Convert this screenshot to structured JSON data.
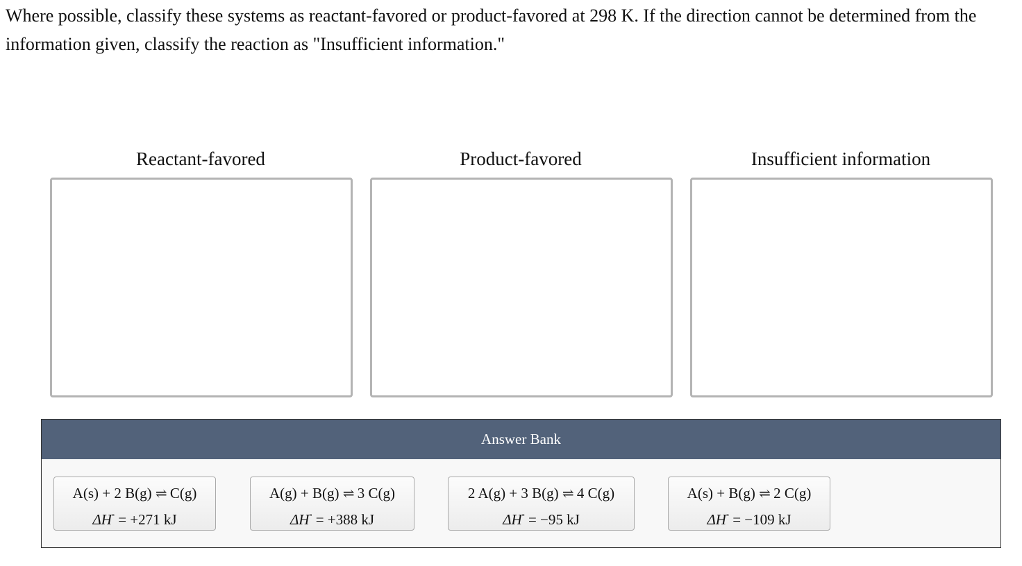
{
  "prompt": "Where possible, classify these systems as reactant-favored or product-favored at 298 K. If the direction cannot be determined from the information given, classify the reaction as \"Insufficient information.\"",
  "bins": [
    {
      "label": "Reactant-favored"
    },
    {
      "label": "Product-favored"
    },
    {
      "label": "Insufficient information"
    }
  ],
  "answer_bank": {
    "title": "Answer Bank",
    "cards": [
      {
        "reactants": "A(s) + 2 B(g)",
        "arrow": "⇌",
        "products": "C(g)",
        "dh_symbol": "ΔH",
        "degree": "°",
        "dh_value": "= +271 kJ"
      },
      {
        "reactants": "A(g) + B(g)",
        "arrow": "⇌",
        "products": "3 C(g)",
        "dh_symbol": "ΔH",
        "degree": "°",
        "dh_value": "= +388 kJ"
      },
      {
        "reactants": "2 A(g) + 3 B(g)",
        "arrow": "⇌",
        "products": "4 C(g)",
        "dh_symbol": "ΔH",
        "degree": "°",
        "dh_value": "= −95 kJ"
      },
      {
        "reactants": "A(s) + B(g)",
        "arrow": "⇌",
        "products": "2 C(g)",
        "dh_symbol": "ΔH",
        "degree": "°",
        "dh_value": "= −109 kJ"
      }
    ]
  },
  "colors": {
    "bank_header": "#52627a",
    "bin_border": "#b4b4b4"
  }
}
